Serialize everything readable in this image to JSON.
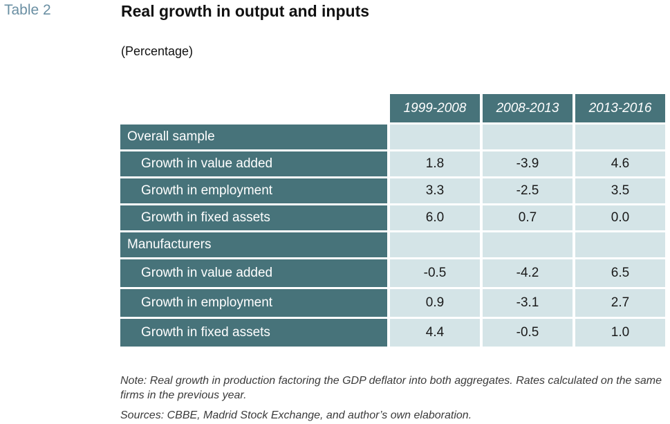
{
  "table_label": "Table 2",
  "title": "Real growth in output and inputs",
  "subtitle": "(Percentage)",
  "columns": [
    "1999-2008",
    "2008-2013",
    "2013-2016"
  ],
  "groups": [
    {
      "label": "Overall sample",
      "rows": [
        {
          "label": "Growth in value added",
          "values": [
            "1.8",
            "-3.9",
            "4.6"
          ]
        },
        {
          "label": "Growth in employment",
          "values": [
            "3.3",
            "-2.5",
            "3.5"
          ]
        },
        {
          "label": "Growth in fixed assets",
          "values": [
            "6.0",
            "0.7",
            "0.0"
          ]
        }
      ]
    },
    {
      "label": "Manufacturers",
      "rows": [
        {
          "label": "Growth in value added",
          "values": [
            "-0.5",
            "-4.2",
            "6.5"
          ]
        },
        {
          "label": "Growth in employment",
          "values": [
            "0.9",
            "-3.1",
            "2.7"
          ]
        },
        {
          "label": "Growth in fixed assets",
          "values": [
            "4.4",
            "-0.5",
            "1.0"
          ]
        }
      ]
    }
  ],
  "note": "Note: Real growth in production factoring the GDP deflator into both aggregates. Rates calculated on the same firms in the previous year.",
  "sources": "Sources: CBBE, Madrid Stock Exchange, and author’s own elaboration.",
  "colors": {
    "header_bg": "#47737a",
    "value_bg": "#d4e4e7",
    "label_accent": "#6a8fa3"
  }
}
